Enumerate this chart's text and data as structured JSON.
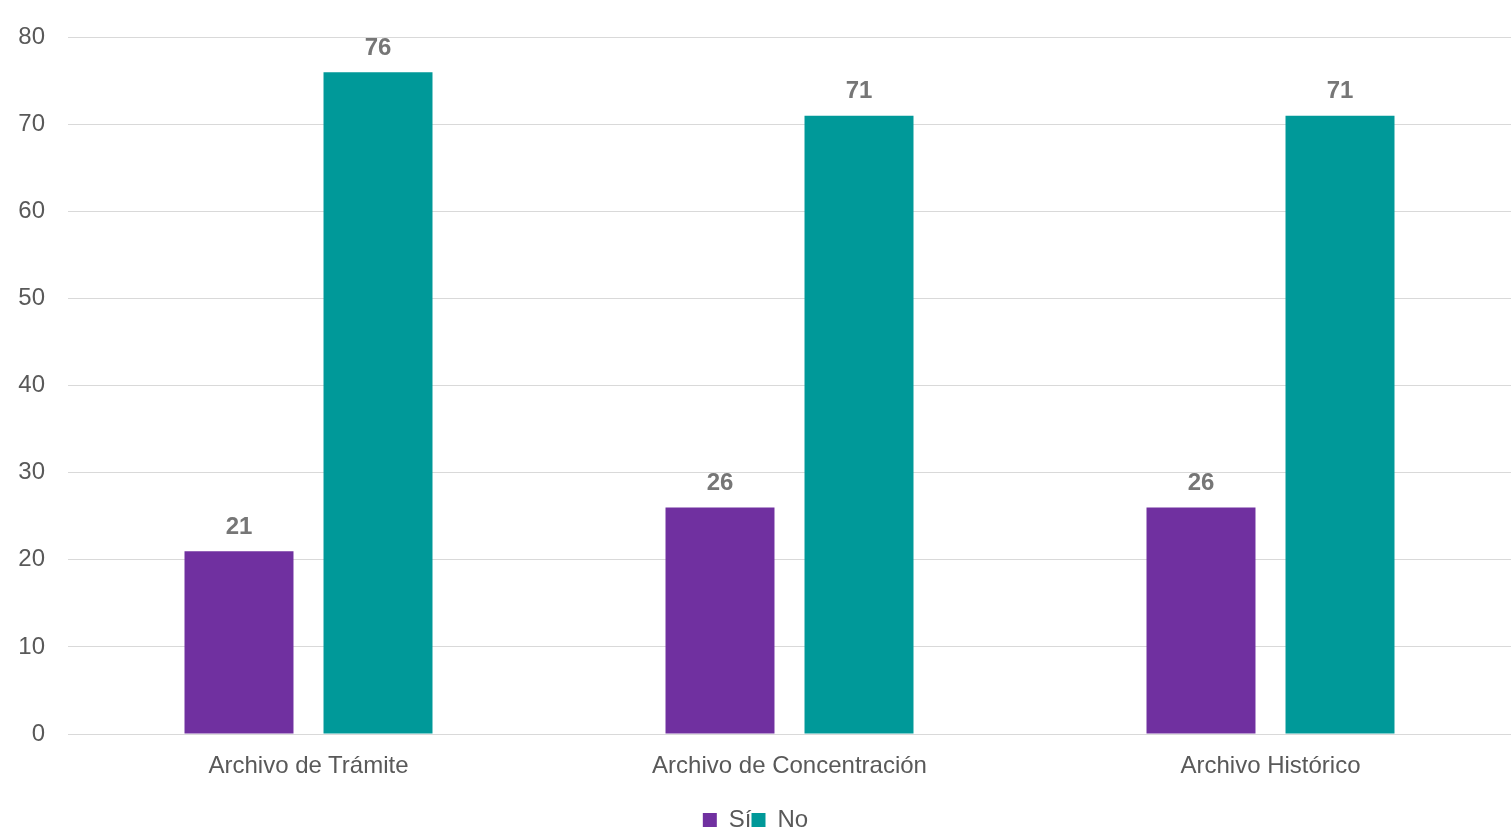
{
  "chart_data": {
    "type": "bar",
    "categories": [
      "Archivo de Trámite",
      "Archivo de Concentración",
      "Archivo Histórico"
    ],
    "series": [
      {
        "name": "Sí",
        "color": "#7030a0",
        "values": [
          21,
          26,
          26
        ]
      },
      {
        "name": "No",
        "color": "#009999",
        "values": [
          76,
          71,
          71
        ]
      }
    ],
    "ylim": [
      0,
      80
    ],
    "yticks": [
      0,
      10,
      20,
      30,
      40,
      50,
      60,
      70,
      80
    ],
    "grid": "y",
    "legend": "bottom",
    "data_labels": true
  }
}
